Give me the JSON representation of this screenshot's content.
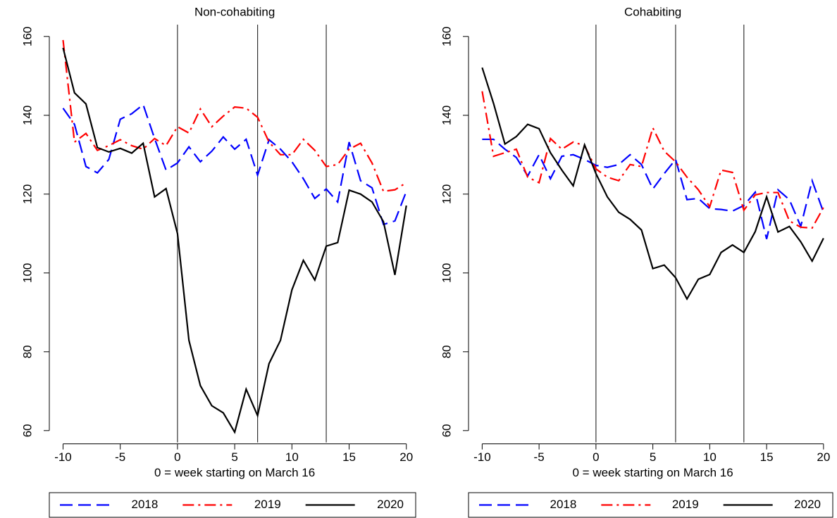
{
  "chart_data": [
    {
      "type": "line",
      "title": "Non-cohabiting",
      "x_label": "0 = week starting on March 16",
      "x": [
        -10,
        -9,
        -8,
        -7,
        -6,
        -5,
        -4,
        -3,
        -2,
        -1,
        0,
        1,
        2,
        3,
        4,
        5,
        6,
        7,
        8,
        9,
        10,
        11,
        12,
        13,
        14,
        15,
        16,
        17,
        18,
        19,
        20
      ],
      "series": [
        {
          "name": "2018",
          "color": "#0000ff",
          "linestyle": "dashed",
          "values": [
            141.8,
            137.7,
            127,
            125.4,
            128.8,
            139,
            140.4,
            142.7,
            134.1,
            126.1,
            127.9,
            132,
            128.2,
            130.9,
            134.5,
            131.4,
            133.9,
            124.8,
            133.8,
            131.4,
            128.2,
            123.9,
            118.9,
            121.3,
            118,
            133.2,
            123.4,
            121.6,
            112.3,
            113.2,
            120.7
          ]
        },
        {
          "name": "2019",
          "color": "#ff0000",
          "linestyle": "dashdot",
          "values": [
            159.1,
            133.2,
            135.4,
            131.1,
            132.3,
            133.8,
            132.3,
            131.4,
            134.1,
            132.3,
            137.1,
            135.5,
            141.6,
            137.1,
            139.8,
            142.1,
            141.8,
            139.5,
            133.2,
            130,
            130,
            133.9,
            131.1,
            127,
            127.5,
            131.4,
            132.9,
            127.9,
            120.7,
            121.1,
            122.9
          ]
        },
        {
          "name": "2020",
          "color": "#000000",
          "linestyle": "solid",
          "values": [
            157.1,
            145.7,
            142.9,
            131.8,
            130.7,
            131.6,
            130.4,
            132.9,
            119.3,
            121.4,
            110,
            82.9,
            71.4,
            66.3,
            64.5,
            59.6,
            70.5,
            63.8,
            77,
            82.9,
            95.7,
            103.2,
            98.2,
            106.8,
            107.7,
            121,
            120,
            118,
            113,
            99.5,
            117.1
          ]
        }
      ],
      "vlines": [
        0,
        7,
        13
      ],
      "xlim": [
        -11.2,
        21
      ],
      "ylim": [
        57,
        163
      ],
      "xticks": [
        -10,
        -5,
        0,
        5,
        10,
        15,
        20
      ],
      "yticks": [
        60,
        80,
        100,
        120,
        140,
        160
      ]
    },
    {
      "type": "line",
      "title": "Cohabiting",
      "x_label": "0 = week starting on March 16",
      "x": [
        -10,
        -9,
        -8,
        -7,
        -6,
        -5,
        -4,
        -3,
        -2,
        -1,
        0,
        1,
        2,
        3,
        4,
        5,
        6,
        7,
        8,
        9,
        10,
        11,
        12,
        13,
        14,
        15,
        16,
        17,
        18,
        19,
        20
      ],
      "series": [
        {
          "name": "2018",
          "color": "#0000ff",
          "linestyle": "dashed",
          "values": [
            133.9,
            133.9,
            131.4,
            129.3,
            124.6,
            130,
            123.9,
            129.6,
            130,
            128.8,
            127.3,
            126.8,
            127.5,
            130,
            127.5,
            121.3,
            125.2,
            128.8,
            118.6,
            118.9,
            116.3,
            116.1,
            115.7,
            117.1,
            120.5,
            108.6,
            121.1,
            118.6,
            111.8,
            123.4,
            115.4
          ]
        },
        {
          "name": "2019",
          "color": "#ff0000",
          "linestyle": "dashdot",
          "values": [
            146.1,
            129.6,
            130.5,
            131.4,
            124.3,
            122.9,
            134.1,
            131.4,
            133.2,
            132.3,
            126.4,
            124.3,
            123.4,
            127.5,
            127,
            136.8,
            130.9,
            128.2,
            124.3,
            121.1,
            116.8,
            126.1,
            125.5,
            115.9,
            119.8,
            120.4,
            120.4,
            113.2,
            111.6,
            111.4,
            116.6
          ]
        },
        {
          "name": "2020",
          "color": "#000000",
          "linestyle": "solid",
          "values": [
            152.1,
            143,
            132.7,
            134.6,
            137.7,
            136.6,
            130.5,
            126.1,
            122.1,
            132.5,
            125.2,
            119.3,
            115.4,
            113.6,
            110.9,
            101.1,
            102,
            98.8,
            93.4,
            98.4,
            99.6,
            105.2,
            107.1,
            105.2,
            110.5,
            119.3,
            110.4,
            111.8,
            107.9,
            103,
            108.8
          ]
        }
      ],
      "vlines": [
        0,
        7,
        13
      ],
      "xlim": [
        -11.2,
        21
      ],
      "ylim": [
        57,
        163
      ],
      "xticks": [
        -10,
        -5,
        0,
        5,
        10,
        15,
        20
      ],
      "yticks": [
        60,
        80,
        100,
        120,
        140,
        160
      ]
    }
  ]
}
